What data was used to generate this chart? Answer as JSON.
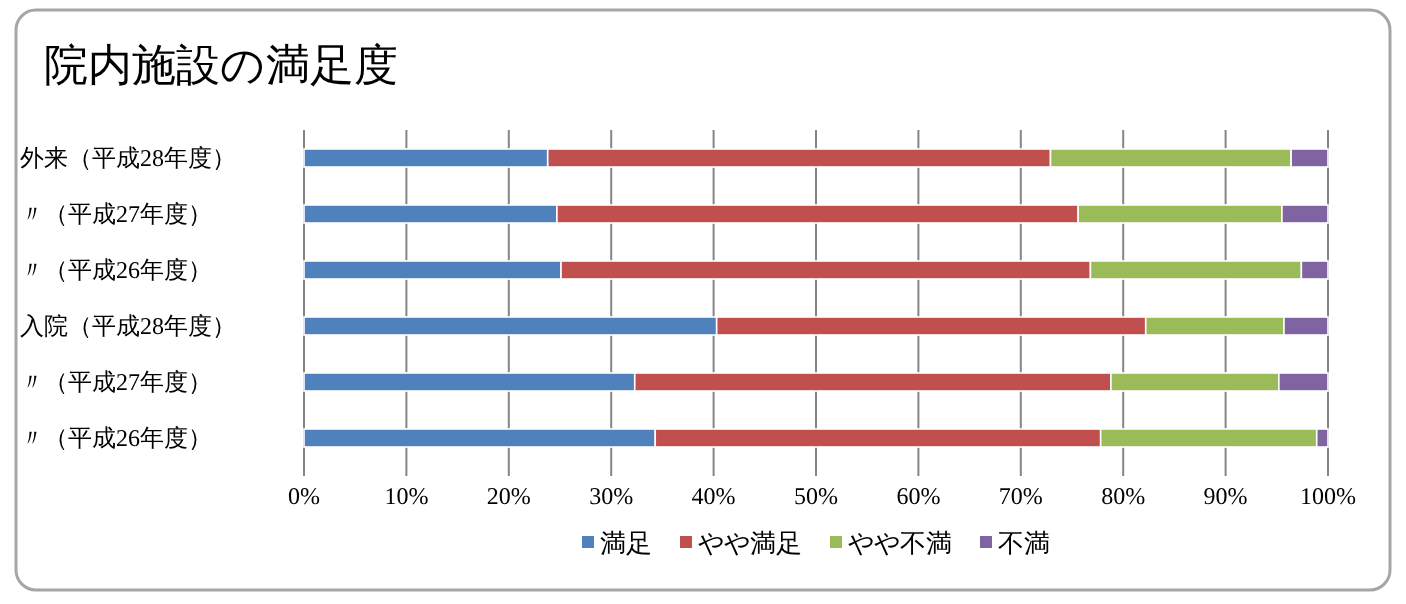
{
  "chart_data": {
    "type": "bar",
    "title": "院内施設の満足度",
    "orientation": "horizontal",
    "stacked": true,
    "categories": [
      "外来（平成28年度）",
      "〃（平成27年度）",
      "〃（平成26年度）",
      "入院（平成28年度）",
      "〃（平成27年度）",
      "〃（平成26年度）"
    ],
    "series": [
      {
        "name": "満足",
        "color": "#4f81bd",
        "values": [
          23.8,
          24.7,
          25.1,
          40.3,
          32.3,
          34.3
        ]
      },
      {
        "name": "やや満足",
        "color": "#c0504d",
        "values": [
          49.1,
          50.9,
          51.7,
          41.9,
          46.5,
          43.5
        ]
      },
      {
        "name": "やや不満",
        "color": "#9bbb59",
        "values": [
          23.5,
          19.9,
          20.6,
          13.5,
          16.4,
          21.1
        ]
      },
      {
        "name": "不満",
        "color": "#8064a2",
        "values": [
          3.6,
          4.5,
          2.6,
          4.3,
          4.8,
          1.1
        ]
      }
    ],
    "xlim": [
      0,
      100
    ],
    "xticks": [
      {
        "value": 0,
        "label": "0%"
      },
      {
        "value": 10,
        "label": "10%"
      },
      {
        "value": 20,
        "label": "20%"
      },
      {
        "value": 30,
        "label": "30%"
      },
      {
        "value": 40,
        "label": "40%"
      },
      {
        "value": 50,
        "label": "50%"
      },
      {
        "value": 60,
        "label": "60%"
      },
      {
        "value": 70,
        "label": "70%"
      },
      {
        "value": 80,
        "label": "80%"
      },
      {
        "value": 90,
        "label": "90%"
      },
      {
        "value": 100,
        "label": "100%"
      }
    ],
    "grid": "x",
    "legend": "bottom"
  }
}
